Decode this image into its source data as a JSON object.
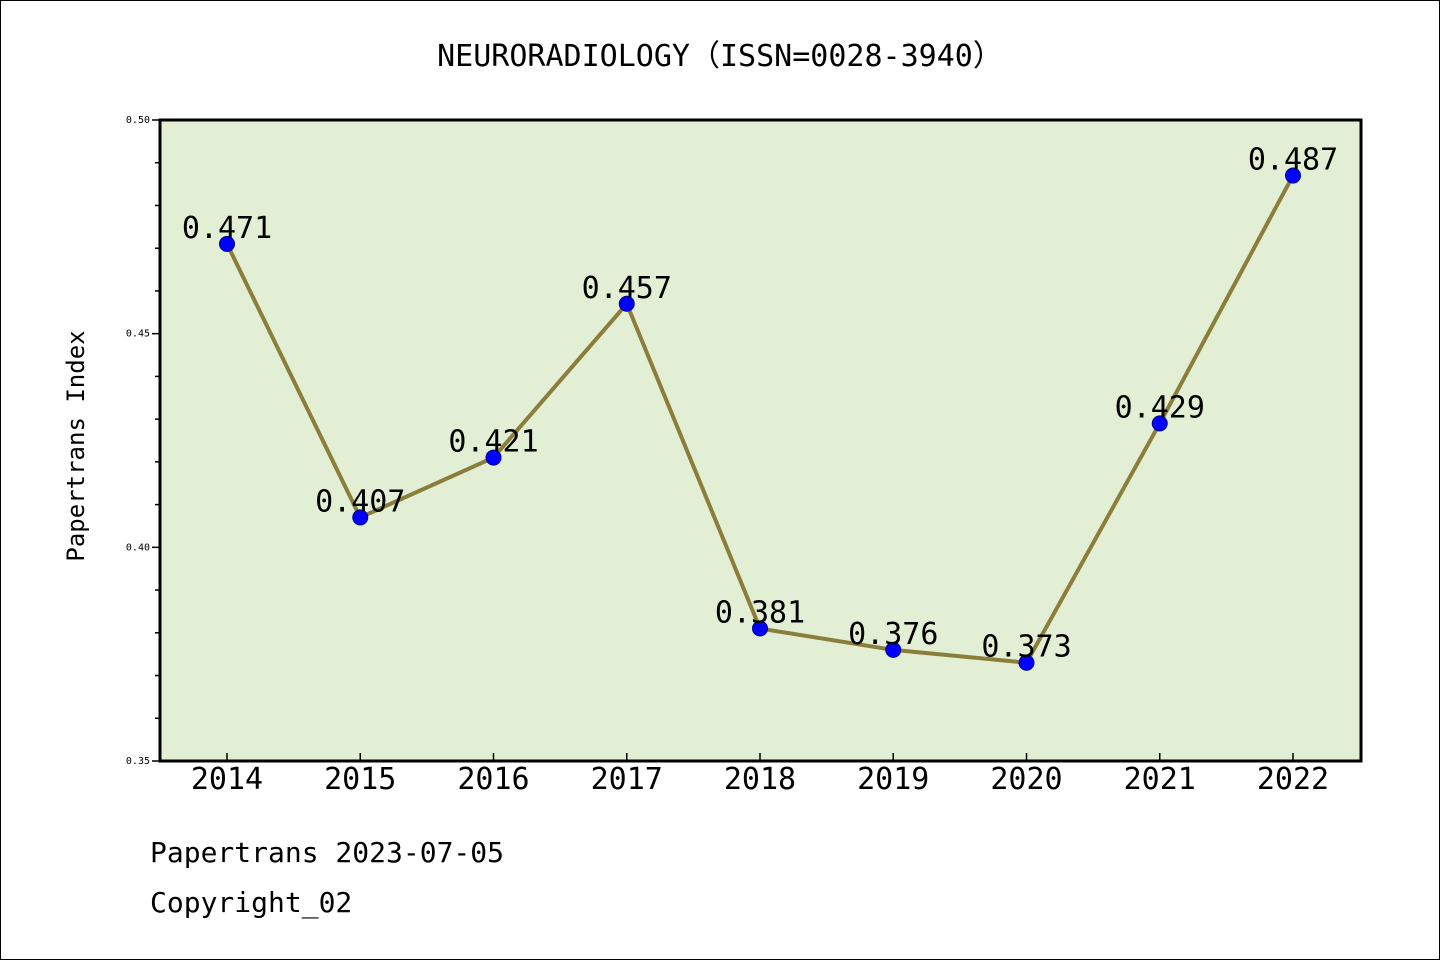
{
  "chart_data": {
    "type": "line",
    "title": "NEURORADIOLOGY（ISSN=0028-3940）",
    "ylabel": "Papertrans Index",
    "xlabel": "",
    "categories": [
      "2014",
      "2015",
      "2016",
      "2017",
      "2018",
      "2019",
      "2020",
      "2021",
      "2022"
    ],
    "series": [
      {
        "values": [
          0.471,
          0.407,
          0.421,
          0.457,
          0.381,
          0.376,
          0.373,
          0.429,
          0.487
        ],
        "labels": [
          "0.471",
          "0.407",
          "0.421",
          "0.457",
          "0.381",
          "0.376",
          "0.373",
          "0.429",
          "0.487"
        ]
      }
    ],
    "ylim": [
      0.35,
      0.5
    ],
    "yticks": [
      "0.35",
      "0.40",
      "0.45",
      "0.50"
    ],
    "grid": false,
    "colors": {
      "line": "#8b7d3a",
      "marker": "#0000ff",
      "plot_background": "#e2efd4"
    }
  },
  "footer": {
    "date_line": "Papertrans 2023-07-05",
    "copyright_line": "Copyright_02"
  }
}
